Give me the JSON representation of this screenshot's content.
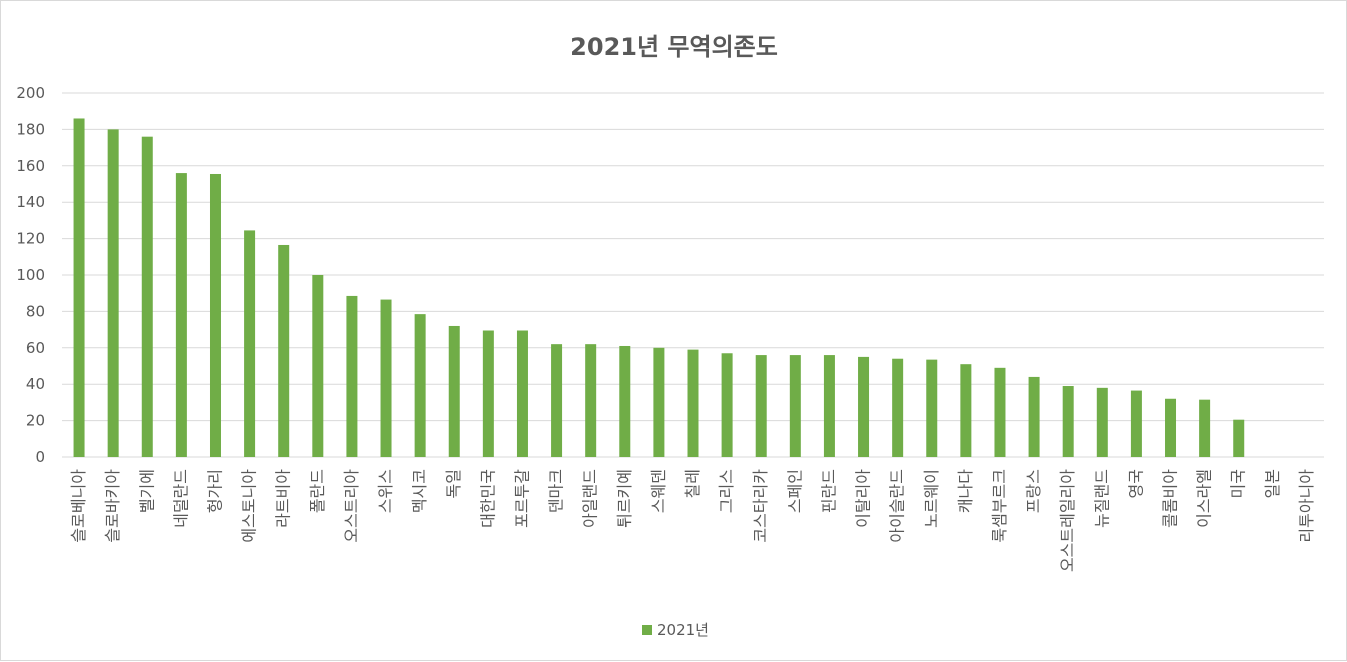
{
  "chart_data": {
    "type": "bar",
    "title": "2021년 무역의존도",
    "xlabel": "",
    "ylabel": "",
    "ylim": [
      0,
      200
    ],
    "yticks": [
      "0",
      "20",
      "40",
      "60",
      "80",
      "100",
      "120",
      "140",
      "160",
      "180",
      "200"
    ],
    "grid": true,
    "legend_position": "bottom",
    "bar_color": "#70ad47",
    "categories": [
      "슬로베니아",
      "슬로바키아",
      "벨기에",
      "네덜란드",
      "헝가리",
      "에스토니아",
      "라트비아",
      "폴란드",
      "오스트리아",
      "스위스",
      "멕시코",
      "독일",
      "대한민국",
      "포르투갈",
      "덴마크",
      "아일랜드",
      "튀르키예",
      "스웨덴",
      "칠레",
      "그리스",
      "코스타리카",
      "스페인",
      "핀란드",
      "이탈리아",
      "아이슬란드",
      "노르웨이",
      "캐나다",
      "룩셈부르크",
      "프랑스",
      "오스트레일리아",
      "뉴질랜드",
      "영국",
      "콜롬비아",
      "이스라엘",
      "미국",
      "일본",
      "리투아니아"
    ],
    "series": [
      {
        "name": "2021년",
        "values": [
          186,
          180,
          176,
          156,
          155.5,
          124.5,
          116.5,
          100,
          88.5,
          86.5,
          78.5,
          72,
          69.5,
          69.5,
          62,
          62,
          61,
          60,
          59,
          57,
          56,
          56,
          56,
          55,
          54,
          53.5,
          51,
          49,
          44,
          39,
          38,
          36.5,
          32,
          31.5,
          20.5,
          null,
          null
        ]
      }
    ]
  }
}
